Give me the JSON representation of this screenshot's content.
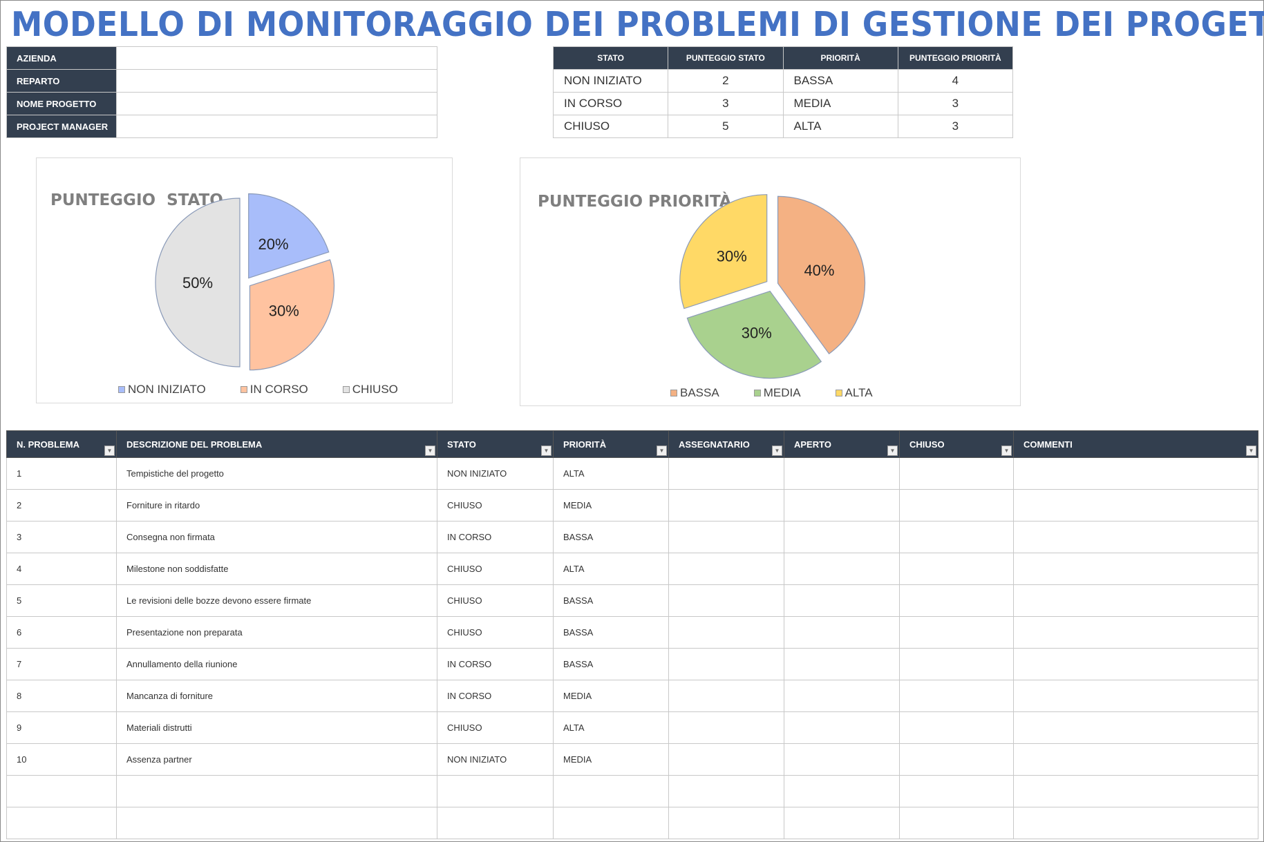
{
  "title": "MODELLO DI MONITORAGGIO DEI PROBLEMI DI GESTIONE DEI PROGETTI",
  "info": [
    {
      "label": "AZIENDA",
      "value": ""
    },
    {
      "label": "REPARTO",
      "value": ""
    },
    {
      "label": "NOME PROGETTO",
      "value": ""
    },
    {
      "label": "PROJECT MANAGER",
      "value": ""
    }
  ],
  "score": {
    "headers": [
      "STATO",
      "PUNTEGGIO STATO",
      "PRIORITÀ",
      "PUNTEGGIO PRIORITÀ"
    ],
    "rows": [
      [
        "NON INIZIATO",
        "2",
        "BASSA",
        "4"
      ],
      [
        "IN CORSO",
        "3",
        "MEDIA",
        "3"
      ],
      [
        "CHIUSO",
        "5",
        "ALTA",
        "3"
      ]
    ]
  },
  "chart_data": [
    {
      "type": "pie",
      "title": "PUNTEGGIO  STATO",
      "categories": [
        "NON INIZIATO",
        "IN CORSO",
        "CHIUSO"
      ],
      "values": [
        2,
        3,
        5
      ],
      "labels": [
        "20%",
        "30%",
        "50%"
      ],
      "colors": [
        "#a8bdfa",
        "#ffc3a0",
        "#e3e3e3"
      ],
      "legend": "bottom"
    },
    {
      "type": "pie",
      "title": "PUNTEGGIO PRIORITÀ",
      "categories": [
        "BASSA",
        "MEDIA",
        "ALTA"
      ],
      "values": [
        4,
        3,
        3
      ],
      "labels": [
        "40%",
        "30%",
        "30%"
      ],
      "colors": [
        "#f4b183",
        "#a9d18e",
        "#ffd966"
      ],
      "legend": "bottom"
    }
  ],
  "issues": {
    "headers": [
      "N. PROBLEMA",
      "DESCRIZIONE DEL PROBLEMA",
      "STATO",
      "PRIORITÀ",
      "ASSEGNATARIO",
      "APERTO",
      "CHIUSO",
      "COMMENTI"
    ],
    "rows": [
      [
        "1",
        "Tempistiche del progetto",
        "NON INIZIATO",
        "ALTA",
        "",
        "",
        "",
        ""
      ],
      [
        "2",
        "Forniture in ritardo",
        "CHIUSO",
        "MEDIA",
        "",
        "",
        "",
        ""
      ],
      [
        "3",
        "Consegna non firmata",
        "IN CORSO",
        "BASSA",
        "",
        "",
        "",
        ""
      ],
      [
        "4",
        "Milestone non soddisfatte",
        "CHIUSO",
        "ALTA",
        "",
        "",
        "",
        ""
      ],
      [
        "5",
        "Le revisioni delle bozze devono essere firmate",
        "CHIUSO",
        "BASSA",
        "",
        "",
        "",
        ""
      ],
      [
        "6",
        "Presentazione non preparata",
        "CHIUSO",
        "BASSA",
        "",
        "",
        "",
        ""
      ],
      [
        "7",
        "Annullamento della riunione",
        "IN CORSO",
        "BASSA",
        "",
        "",
        "",
        ""
      ],
      [
        "8",
        "Mancanza di forniture",
        "IN CORSO",
        "MEDIA",
        "",
        "",
        "",
        ""
      ],
      [
        "9",
        "Materiali distrutti",
        "CHIUSO",
        "ALTA",
        "",
        "",
        "",
        ""
      ],
      [
        "10",
        "Assenza partner",
        "NON INIZIATO",
        "MEDIA",
        "",
        "",
        "",
        ""
      ],
      [
        "",
        "",
        "",
        "",
        "",
        "",
        "",
        ""
      ],
      [
        "",
        "",
        "",
        "",
        "",
        "",
        "",
        ""
      ]
    ]
  }
}
